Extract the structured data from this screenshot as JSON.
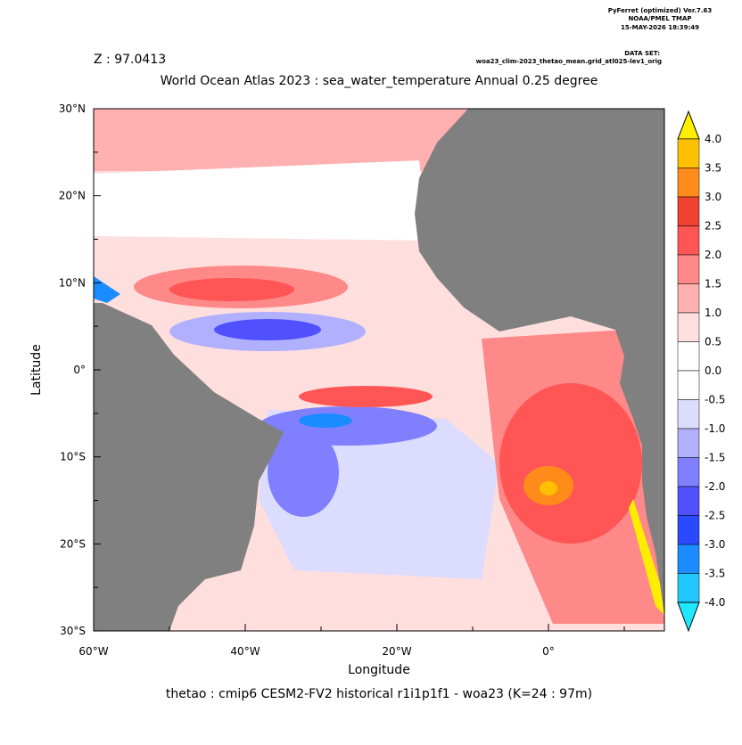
{
  "header": {
    "program": "PyFerret (optimized) Ver.7.63",
    "organization": "NOAA/PMEL TMAP",
    "date": "15-MAY-2026 18:39:49",
    "dataset_label": "DATA SET:",
    "dataset": "woa23_clim-2023_thetao_mean.grid_atl025-lev1_orig"
  },
  "z_label": "Z : 97.0413",
  "title": "World Ocean Atlas 2023 : sea_water_temperature Annual  0.25 degree",
  "x_axis": {
    "label": "Longitude",
    "ticks": [
      "60°W",
      "40°W",
      "20°W",
      "0°"
    ]
  },
  "y_axis": {
    "label": "Latitude",
    "ticks": [
      "30°N",
      "20°N",
      "10°N",
      "0°",
      "10°S",
      "20°S",
      "30°S"
    ]
  },
  "colorbar": {
    "labels": [
      "4.0",
      "3.5",
      "3.0",
      "2.5",
      "2.0",
      "1.5",
      "1.0",
      "0.5",
      "0.0",
      "-0.5",
      "-1.0",
      "-1.5",
      "-2.0",
      "-2.5",
      "-3.0",
      "-3.5",
      "-4.0"
    ]
  },
  "footer": "thetao : cmip6 CESM2-FV2 historical r1i1p1f1 - woa23  (K=24 : 97m)"
}
